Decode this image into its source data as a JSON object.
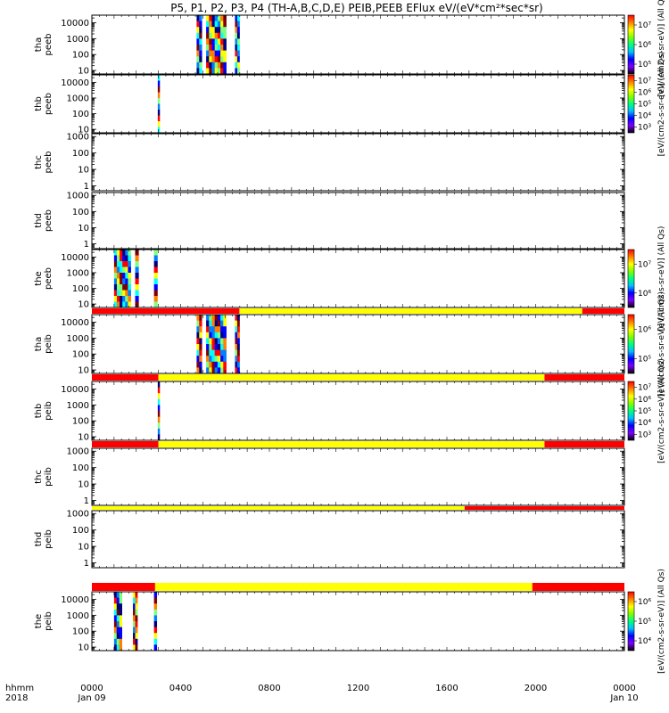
{
  "chart_data": {
    "type": "heatmap",
    "title": "P5, P1, P2, P3, P4 (TH-A,B,C,D,E) PEIB,PEEB EFlux eV/(eV*cm²*sec*sr)",
    "x_corner_labels": [
      "hhmm",
      "2018"
    ],
    "x_ticks": [
      {
        "t": 0,
        "label": "0000",
        "sub": "Jan 09"
      },
      {
        "t": 4,
        "label": "0400",
        "sub": ""
      },
      {
        "t": 8,
        "label": "0800",
        "sub": ""
      },
      {
        "t": 12,
        "label": "1200",
        "sub": ""
      },
      {
        "t": 16,
        "label": "1600",
        "sub": ""
      },
      {
        "t": 20,
        "label": "2000",
        "sub": ""
      },
      {
        "t": 24,
        "label": "0000",
        "sub": "Jan 10"
      }
    ],
    "xlim_hours": [
      0,
      24
    ],
    "panels": [
      {
        "id": "tha_peeb",
        "ylabel": [
          "tha",
          "peeb"
        ],
        "yticks": [
          "10",
          "100",
          "1000",
          "10000"
        ],
        "ylim": [
          6,
          30000
        ],
        "spans": [
          [
            4.72,
            4.95
          ],
          [
            5.15,
            6.05
          ],
          [
            6.45,
            6.65
          ]
        ],
        "cb": {
          "ticks": [
            "10⁵",
            "10⁶",
            "10⁷"
          ],
          "label": "[eV/(cm2-s-sr-eV)] (All Qs)"
        }
      },
      {
        "id": "thb_peeb",
        "ylabel": [
          "thb",
          "peeb"
        ],
        "yticks": [
          "10",
          "100",
          "1000",
          "10000"
        ],
        "ylim": [
          6,
          30000
        ],
        "spans": [
          [
            2.97,
            3.05
          ]
        ],
        "cb": {
          "ticks": [
            "10³",
            "10⁴",
            "10⁵",
            "10⁶",
            "10⁷"
          ],
          "label": "[eV/(cm2-s-sr-eV)] (All Qs)"
        }
      },
      {
        "id": "thc_peeb",
        "ylabel": [
          "thc",
          "peeb"
        ],
        "yticks": [
          "1",
          "10",
          "100",
          "1000"
        ],
        "ylim": [
          0.5,
          1500
        ],
        "spans": [],
        "cb": null
      },
      {
        "id": "thd_peeb",
        "ylabel": [
          "thd",
          "peeb"
        ],
        "yticks": [
          "1",
          "10",
          "100",
          "1000"
        ],
        "ylim": [
          0.5,
          1500
        ],
        "spans": [],
        "cb": null
      },
      {
        "id": "the_peeb",
        "ylabel": [
          "the",
          "peeb"
        ],
        "yticks": [
          "10",
          "100",
          "1000",
          "10000"
        ],
        "ylim": [
          6,
          30000
        ],
        "spans": [
          [
            1.0,
            1.75
          ],
          [
            1.95,
            2.1
          ],
          [
            2.8,
            2.95
          ]
        ],
        "cb": {
          "ticks": [
            "10⁶",
            "10⁷"
          ],
          "label": "[eV/(cm2-s-sr-eV)] (All Qs)"
        },
        "mode_bar": [
          {
            "to": 6.65,
            "color": "#ff0000"
          },
          {
            "to": 22.1,
            "color": "#ffff00"
          },
          {
            "to": 24,
            "color": "#ff0000"
          }
        ]
      },
      {
        "id": "tha_peib",
        "ylabel": [
          "tha",
          "peib"
        ],
        "yticks": [
          "10",
          "100",
          "1000",
          "10000"
        ],
        "ylim": [
          6,
          30000
        ],
        "spans": [
          [
            4.72,
            4.95
          ],
          [
            5.15,
            6.05
          ],
          [
            6.45,
            6.65
          ]
        ],
        "cb": {
          "ticks": [
            "10⁵",
            "10⁶"
          ],
          "label": "[eV/(cm2-s-sr-eV)] (All Qs)"
        },
        "mode_bar": [
          {
            "to": 3.0,
            "color": "#ff0000"
          },
          {
            "to": 20.4,
            "color": "#ffff00"
          },
          {
            "to": 24,
            "color": "#ff0000"
          }
        ]
      },
      {
        "id": "thb_peib",
        "ylabel": [
          "thb",
          "peib"
        ],
        "yticks": [
          "10",
          "100",
          "1000",
          "10000"
        ],
        "ylim": [
          6,
          30000
        ],
        "spans": [
          [
            2.97,
            3.05
          ]
        ],
        "cb": {
          "ticks": [
            "10³",
            "10⁴",
            "10⁵",
            "10⁶",
            "10⁷"
          ],
          "label": "[eV/(cm2-s-sr-eV)] (All Qs)"
        },
        "mode_bar": [
          {
            "to": 3.0,
            "color": "#ff0000"
          },
          {
            "to": 20.4,
            "color": "#ffff00"
          },
          {
            "to": 24,
            "color": "#ff0000"
          }
        ]
      },
      {
        "id": "thc_peib",
        "ylabel": [
          "thc",
          "peib"
        ],
        "yticks": [
          "1",
          "10",
          "100",
          "1000"
        ],
        "ylim": [
          0.5,
          1500
        ],
        "spans": [],
        "cb": null,
        "mode_bar": [
          {
            "to": 16.8,
            "color": "#ffff00"
          },
          {
            "to": 24,
            "color": "#ff0000"
          }
        ]
      },
      {
        "id": "thd_peib",
        "ylabel": [
          "thd",
          "peib"
        ],
        "yticks": [
          "1",
          "10",
          "100",
          "1000"
        ],
        "ylim": [
          0.5,
          1500
        ],
        "spans": [],
        "cb": null,
        "mode_bar": [
          {
            "to": 2.85,
            "color": "#ff0000"
          },
          {
            "to": 19.85,
            "color": "#ffff00"
          },
          {
            "to": 24,
            "color": "#ff0000"
          }
        ]
      },
      {
        "id": "the_peib",
        "ylabel": [
          "the",
          "peib"
        ],
        "yticks": [
          "10",
          "100",
          "1000",
          "10000"
        ],
        "ylim": [
          6,
          30000
        ],
        "spans": [
          [
            1.0,
            1.35
          ],
          [
            1.85,
            2.05
          ],
          [
            2.8,
            2.92
          ]
        ],
        "cb": {
          "ticks": [
            "10⁴",
            "10⁵",
            "10⁶"
          ],
          "label": "[eV/(cm2-s-sr-eV)] (All Qs)"
        }
      }
    ]
  }
}
